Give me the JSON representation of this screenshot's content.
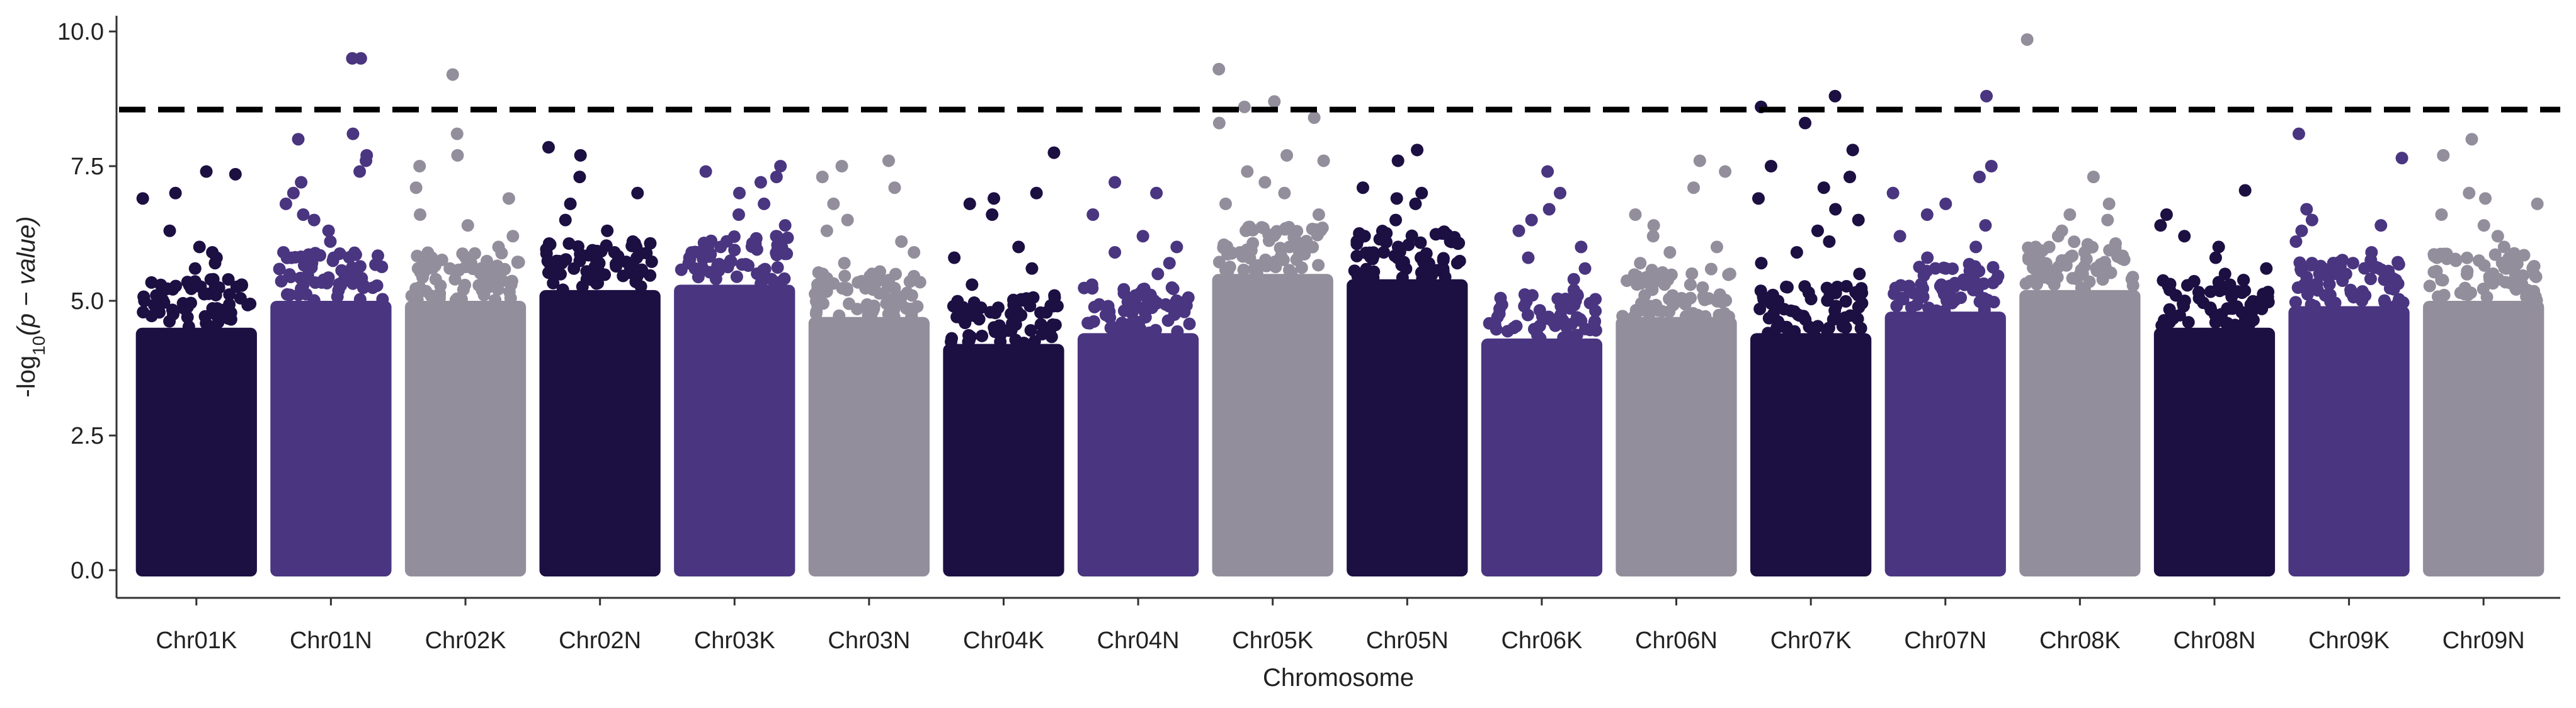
{
  "chart_data": {
    "type": "scatter",
    "subtype": "manhattan",
    "title": "",
    "xlabel": "Chromosome",
    "ylabel_prefix": "-log",
    "ylabel_sub": "10",
    "ylabel_expr": "(p − value)",
    "ylim": [
      0,
      10.5
    ],
    "yticks": [
      0.0,
      2.5,
      5.0,
      7.5,
      10.0
    ],
    "ytick_labels": [
      "0.0",
      "2.5",
      "5.0",
      "7.5",
      "10.0"
    ],
    "threshold": 8.55,
    "grid": false,
    "legend": "none",
    "palette": [
      "#1c0f42",
      "#4a3580",
      "#938e9c"
    ],
    "categories": [
      {
        "name": "Chr01K",
        "color": "#1c0f42",
        "body": 4.5,
        "top": [
          7.4,
          7.35,
          7.0,
          6.9,
          6.3,
          6.0,
          5.9,
          5.8,
          5.7,
          5.6,
          5.4,
          5.3,
          5.2,
          5.1
        ]
      },
      {
        "name": "Chr01N",
        "color": "#4a3580",
        "body": 5.0,
        "top": [
          9.5,
          9.5,
          8.1,
          8.0,
          7.7,
          7.6,
          7.4,
          7.2,
          7.0,
          6.8,
          6.6,
          6.5,
          6.3,
          6.1,
          5.9,
          5.7,
          5.5
        ]
      },
      {
        "name": "Chr02K",
        "color": "#938e9c",
        "body": 5.0,
        "top": [
          9.2,
          8.1,
          7.7,
          7.5,
          7.1,
          6.9,
          6.6,
          6.4,
          6.2,
          6.0,
          5.8,
          5.6,
          5.4,
          5.3
        ]
      },
      {
        "name": "Chr02N",
        "color": "#1c0f42",
        "body": 5.2,
        "top": [
          7.85,
          7.7,
          7.3,
          7.0,
          6.8,
          6.5,
          6.3,
          6.1,
          6.0,
          5.9,
          5.8,
          5.7,
          5.6
        ]
      },
      {
        "name": "Chr03K",
        "color": "#4a3580",
        "body": 5.3,
        "top": [
          7.5,
          7.4,
          7.3,
          7.2,
          7.0,
          6.8,
          6.6,
          6.4,
          6.2,
          6.0,
          5.9,
          5.8,
          5.7,
          5.6
        ]
      },
      {
        "name": "Chr03N",
        "color": "#938e9c",
        "body": 4.7,
        "top": [
          7.6,
          7.5,
          7.3,
          7.1,
          6.8,
          6.5,
          6.3,
          6.1,
          5.9,
          5.7,
          5.5,
          5.3,
          5.2,
          5.1
        ]
      },
      {
        "name": "Chr04K",
        "color": "#1c0f42",
        "body": 4.2,
        "top": [
          7.75,
          7.0,
          6.9,
          6.8,
          6.6,
          6.0,
          5.8,
          5.6,
          5.3,
          5.1,
          4.9,
          4.8,
          4.7
        ]
      },
      {
        "name": "Chr04N",
        "color": "#4a3580",
        "body": 4.4,
        "top": [
          7.2,
          7.0,
          6.6,
          6.2,
          6.0,
          5.9,
          5.7,
          5.5,
          5.3,
          5.1,
          4.9,
          4.8
        ]
      },
      {
        "name": "Chr05K",
        "color": "#938e9c",
        "body": 5.5,
        "top": [
          9.3,
          8.7,
          8.6,
          8.4,
          8.3,
          7.7,
          7.6,
          7.4,
          7.2,
          7.0,
          6.8,
          6.6,
          6.3,
          6.1,
          6.0
        ]
      },
      {
        "name": "Chr05N",
        "color": "#1c0f42",
        "body": 5.4,
        "top": [
          7.8,
          7.6,
          7.1,
          7.0,
          6.9,
          6.8,
          6.5,
          6.2,
          6.0,
          5.9,
          5.8,
          5.7
        ]
      },
      {
        "name": "Chr06K",
        "color": "#4a3580",
        "body": 4.3,
        "top": [
          7.4,
          7.0,
          6.7,
          6.5,
          6.3,
          6.0,
          5.8,
          5.6,
          5.4,
          5.2,
          5.0,
          4.9
        ]
      },
      {
        "name": "Chr06N",
        "color": "#938e9c",
        "body": 4.7,
        "top": [
          7.6,
          7.4,
          7.1,
          6.6,
          6.4,
          6.2,
          6.0,
          5.9,
          5.7,
          5.5,
          5.3,
          5.1
        ]
      },
      {
        "name": "Chr07K",
        "color": "#1c0f42",
        "body": 4.4,
        "top": [
          8.8,
          8.6,
          8.3,
          7.8,
          7.5,
          7.3,
          7.1,
          6.9,
          6.7,
          6.5,
          6.3,
          6.1,
          5.9,
          5.7,
          5.5
        ]
      },
      {
        "name": "Chr07N",
        "color": "#4a3580",
        "body": 4.8,
        "top": [
          8.8,
          7.5,
          7.3,
          7.0,
          6.8,
          6.6,
          6.4,
          6.2,
          6.0,
          5.8,
          5.6,
          5.4,
          5.2
        ]
      },
      {
        "name": "Chr08K",
        "color": "#938e9c",
        "body": 5.2,
        "top": [
          9.85,
          7.3,
          6.8,
          6.6,
          6.5,
          6.3,
          6.2,
          6.0,
          5.9,
          5.7,
          5.5,
          5.4,
          5.3
        ]
      },
      {
        "name": "Chr08N",
        "color": "#1c0f42",
        "body": 4.5,
        "top": [
          7.05,
          6.6,
          6.4,
          6.2,
          6.0,
          5.8,
          5.6,
          5.5,
          5.3,
          5.1,
          5.0,
          4.9
        ]
      },
      {
        "name": "Chr09K",
        "color": "#4a3580",
        "body": 4.9,
        "top": [
          8.1,
          7.65,
          6.7,
          6.5,
          6.4,
          6.3,
          6.1,
          5.9,
          5.7,
          5.5,
          5.3,
          5.1
        ]
      },
      {
        "name": "Chr09N",
        "color": "#938e9c",
        "body": 5.0,
        "top": [
          8.0,
          7.7,
          7.0,
          6.9,
          6.8,
          6.6,
          6.4,
          6.2,
          6.0,
          5.8,
          5.6,
          5.4,
          5.2
        ]
      }
    ]
  }
}
